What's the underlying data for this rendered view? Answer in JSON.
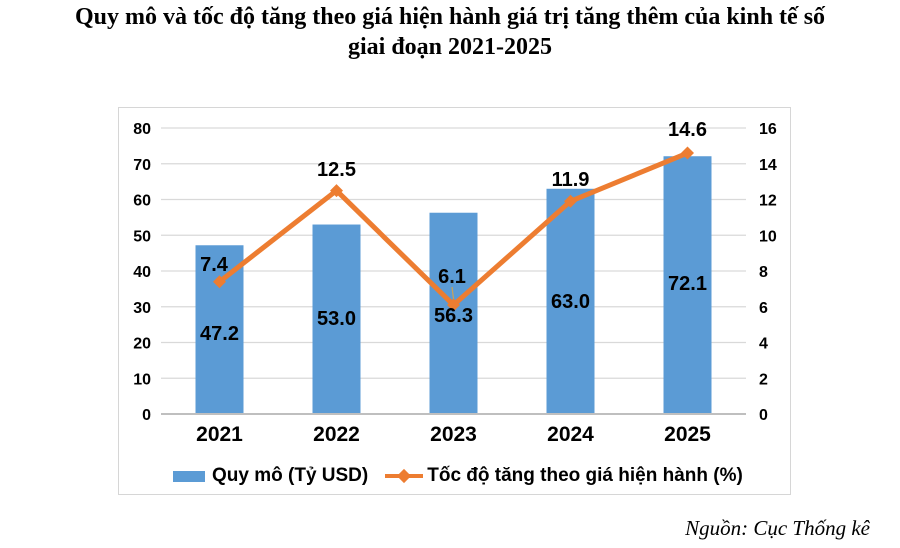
{
  "title": {
    "line1": "Quy mô và tốc độ tăng theo giá hiện hành giá trị tăng thêm của kinh tế số",
    "line2": "giai đoạn 2021-2025"
  },
  "source": "Nguồn: Cục Thống kê",
  "colors": {
    "bar": "#5B9BD5",
    "line": "#ED7D31",
    "gridline": "#D9D9D9",
    "axis_line": "#BFBFBF",
    "label_text": "#000000",
    "leader_line": "#C9A35B",
    "chart_border": "#D6D6D6"
  },
  "chart_data": {
    "type": "bar",
    "subtype": "combo-bar-line",
    "title": "Quy mô và tốc độ tăng theo giá hiện hành giá trị tăng thêm của kinh tế số giai đoạn 2021-2025",
    "categories": [
      "2021",
      "2022",
      "2023",
      "2024",
      "2025"
    ],
    "series": [
      {
        "name": "Quy mô (Tỷ USD)",
        "type": "bar",
        "axis": "left",
        "color": "#5B9BD5",
        "values": [
          47.2,
          53.0,
          56.3,
          63.0,
          72.1
        ]
      },
      {
        "name": "Tốc độ tăng theo giá hiện hành (%)",
        "type": "line",
        "axis": "right",
        "color": "#ED7D31",
        "marker": "diamond",
        "values": [
          7.4,
          12.5,
          6.1,
          11.9,
          14.6
        ]
      }
    ],
    "left_axis": {
      "min": 0,
      "max": 80,
      "step": 10,
      "ticks": [
        0,
        10,
        20,
        30,
        40,
        50,
        60,
        70,
        80
      ]
    },
    "right_axis": {
      "min": 0,
      "max": 16,
      "step": 2,
      "ticks": [
        0,
        2,
        4,
        6,
        8,
        10,
        12,
        14,
        16
      ]
    },
    "grid": true,
    "data_labels": true,
    "legend_position": "bottom",
    "xlabel": "",
    "ylabel_left": "Tỷ USD",
    "ylabel_right": "%"
  }
}
